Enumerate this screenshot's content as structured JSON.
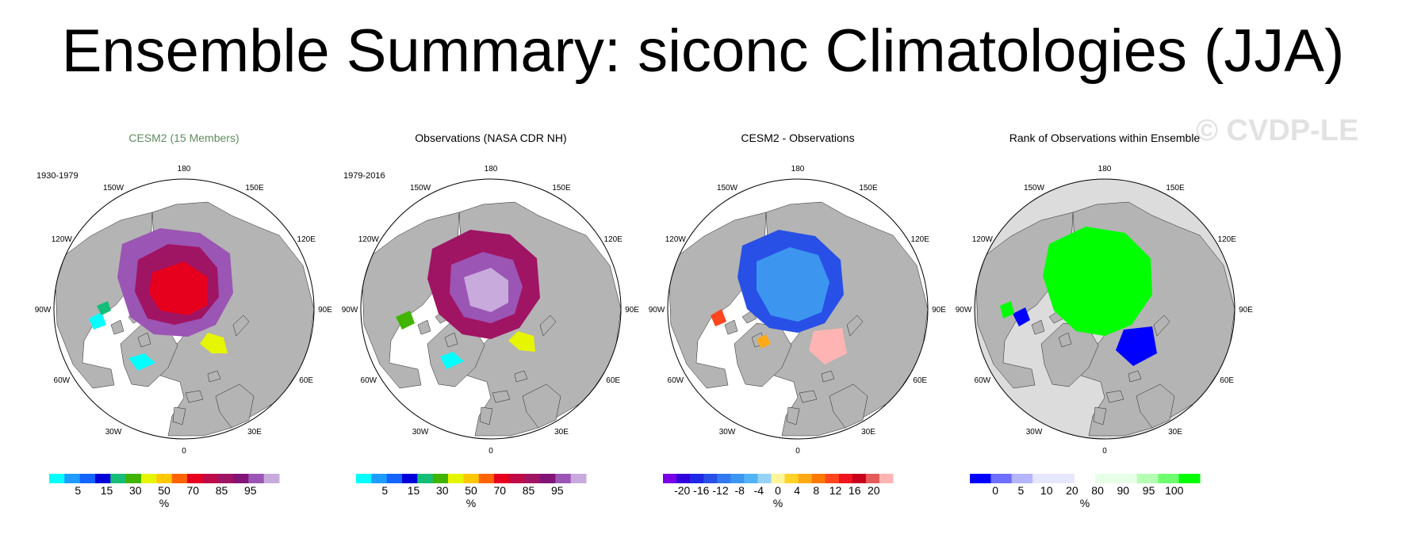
{
  "title": "Ensemble Summary: siconc Climatologies (JJA)",
  "watermark": "© CVDP-LE",
  "lon_labels": [
    "180",
    "150E",
    "120E",
    "90E",
    "60E",
    "30E",
    "0",
    "30W",
    "60W",
    "90W",
    "120W",
    "150W"
  ],
  "panels": [
    {
      "title": "CESM2 (15 Members)",
      "title_color": "#5f8c5f",
      "period": "1930-1979",
      "kind": "clim",
      "colorbar": {
        "colors": [
          "#00ffff",
          "#1e9cff",
          "#1464ff",
          "#0000d8",
          "#14be78",
          "#41b400",
          "#e6f500",
          "#ffc800",
          "#ff6400",
          "#e6001e",
          "#be0a46",
          "#a01464",
          "#821478",
          "#9b55b4",
          "#c8aadc"
        ],
        "labels": [
          "5",
          "15",
          "30",
          "50",
          "70",
          "85",
          "95"
        ],
        "unit": "%"
      }
    },
    {
      "title": "Observations (NASA CDR NH)",
      "title_color": "#000000",
      "period": "1979-2016",
      "kind": "clim",
      "colorbar": {
        "colors": [
          "#00ffff",
          "#1e9cff",
          "#1464ff",
          "#0000d8",
          "#14be78",
          "#41b400",
          "#e6f500",
          "#ffc800",
          "#ff6400",
          "#e6001e",
          "#be0a46",
          "#a01464",
          "#821478",
          "#9b55b4",
          "#c8aadc"
        ],
        "labels": [
          "5",
          "15",
          "30",
          "50",
          "70",
          "85",
          "95"
        ],
        "unit": "%"
      }
    },
    {
      "title": "CESM2 - Observations",
      "title_color": "#000000",
      "period": "",
      "kind": "diff",
      "colorbar": {
        "colors": [
          "#7a00e6",
          "#3200dc",
          "#1e28e6",
          "#2850e6",
          "#3278ee",
          "#3c96f0",
          "#50b4f5",
          "#96d2f5",
          "#fff59b",
          "#ffd228",
          "#ffaa14",
          "#ff7800",
          "#ff461e",
          "#f0141e",
          "#c8001e",
          "#e65a5a",
          "#ffb4b4"
        ],
        "labels": [
          "-20",
          "-16",
          "-12",
          "-8",
          "-4",
          "0",
          "4",
          "8",
          "12",
          "16",
          "20"
        ],
        "unit": "%"
      }
    },
    {
      "title": "Rank of Observations within Ensemble",
      "title_color": "#000000",
      "period": "",
      "kind": "rank",
      "colorbar": {
        "colors": [
          "#0000ff",
          "#6e6eff",
          "#b4b4ff",
          "#e6e6ff",
          "#e6e6ff",
          "#ffffff",
          "#e6ffe6",
          "#e6ffe6",
          "#b4ffb4",
          "#6eff6e",
          "#00ff00"
        ],
        "labels": [
          "0",
          "5",
          "10",
          "20",
          "80",
          "90",
          "95",
          "100"
        ],
        "unit": "%"
      }
    }
  ]
}
